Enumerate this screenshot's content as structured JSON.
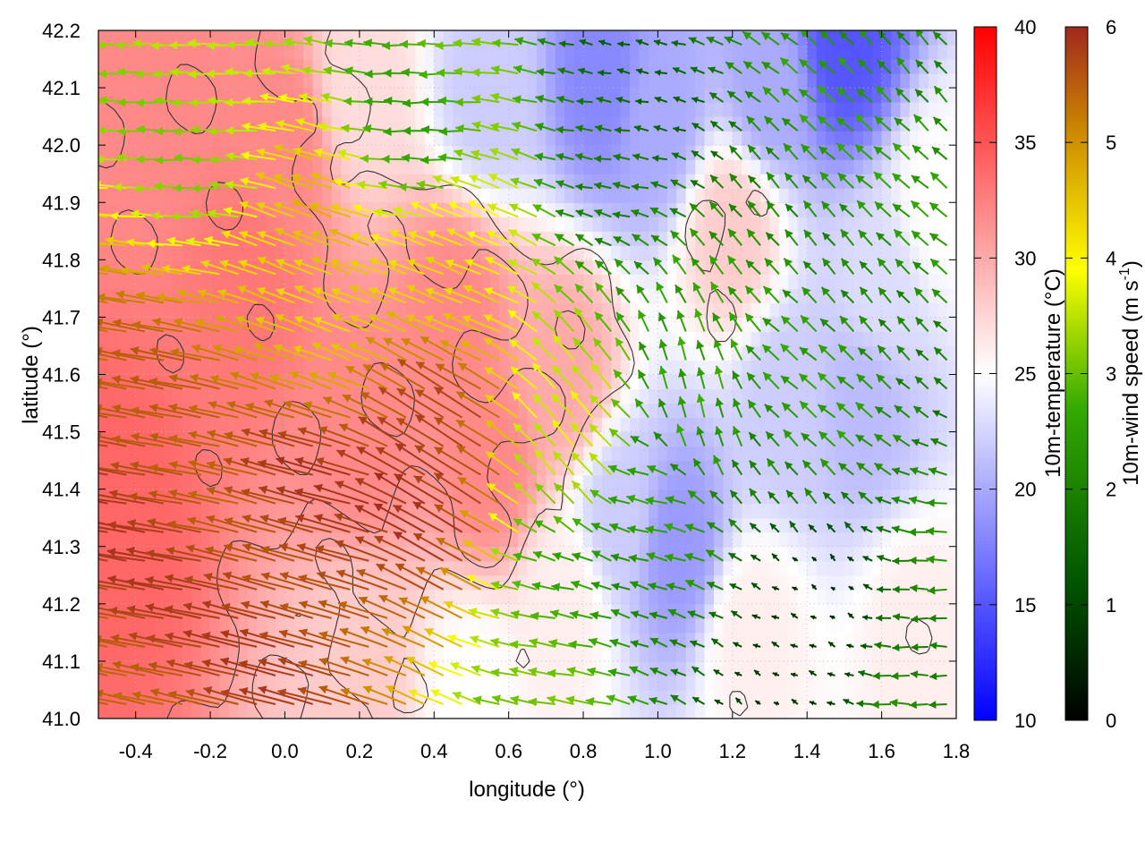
{
  "chart_data": {
    "type": "heatmap",
    "subtype": "map field with wind vectors and contour lines",
    "title": "",
    "xlabel": "longitude (°)",
    "ylabel": "latitude (°)",
    "xlim": [
      -0.5,
      1.8
    ],
    "ylim": [
      41.0,
      42.2
    ],
    "x_ticks": [
      -0.4,
      -0.2,
      0.0,
      0.2,
      0.4,
      0.6,
      0.8,
      1.0,
      1.2,
      1.4,
      1.6,
      1.8
    ],
    "x_tick_labels": [
      "-0.4",
      "-0.2",
      "0.0",
      "0.2",
      "0.4",
      "0.6",
      "0.8",
      "1.0",
      "1.2",
      "1.4",
      "1.6",
      "1.8"
    ],
    "y_ticks": [
      41.0,
      41.1,
      41.2,
      41.3,
      41.4,
      41.5,
      41.6,
      41.7,
      41.8,
      41.9,
      42.0,
      42.1,
      42.2
    ],
    "y_tick_labels": [
      "41.0",
      "41.1",
      "41.2",
      "41.3",
      "41.4",
      "41.5",
      "41.6",
      "41.7",
      "41.8",
      "41.9",
      "42.0",
      "42.1",
      "42.2"
    ],
    "grid": true,
    "temperature_colorbar": {
      "label": "10m-temperature (°C)",
      "range": [
        10,
        40
      ],
      "ticks": [
        10,
        15,
        20,
        25,
        30,
        35,
        40
      ],
      "tick_labels": [
        "10",
        "15",
        "20",
        "25",
        "30",
        "35",
        "40"
      ],
      "colors": [
        "#0000ff",
        "#ffffff",
        "#ff0000"
      ]
    },
    "wind_colorbar": {
      "label_main": "10m-wind speed (m s",
      "label_sup": "-1",
      "label_end": ")",
      "range": [
        0,
        6
      ],
      "ticks": [
        0,
        1,
        2,
        3,
        4,
        5,
        6
      ],
      "tick_labels": [
        "0",
        "1",
        "2",
        "3",
        "4",
        "5",
        "6"
      ],
      "colors": [
        "#000000",
        "#005500",
        "#33aa00",
        "#ffff00",
        "#cc8800",
        "#a0281e"
      ]
    },
    "temperature_features": [
      {
        "lon": -0.45,
        "lat": 41.35,
        "temp": 34
      },
      {
        "lon": -0.35,
        "lat": 42.05,
        "temp": 32
      },
      {
        "lon": -0.1,
        "lat": 41.75,
        "temp": 33
      },
      {
        "lon": 0.0,
        "lat": 42.0,
        "temp": 32
      },
      {
        "lon": 0.2,
        "lat": 41.5,
        "temp": 32
      },
      {
        "lon": 0.45,
        "lat": 41.7,
        "temp": 32
      },
      {
        "lon": 0.55,
        "lat": 41.45,
        "temp": 32
      },
      {
        "lon": 0.75,
        "lat": 41.6,
        "temp": 30
      },
      {
        "lon": 0.5,
        "lat": 41.05,
        "temp": 25
      },
      {
        "lon": 0.75,
        "lat": 41.2,
        "temp": 26
      },
      {
        "lon": 0.9,
        "lat": 41.35,
        "temp": 22
      },
      {
        "lon": 1.05,
        "lat": 41.3,
        "temp": 19
      },
      {
        "lon": 1.25,
        "lat": 41.15,
        "temp": 26
      },
      {
        "lon": 1.35,
        "lat": 41.55,
        "temp": 22
      },
      {
        "lon": 1.55,
        "lat": 41.55,
        "temp": 21
      },
      {
        "lon": 1.6,
        "lat": 41.75,
        "temp": 23
      },
      {
        "lon": 1.5,
        "lat": 42.18,
        "temp": 15
      },
      {
        "lon": 1.3,
        "lat": 42.1,
        "temp": 20
      },
      {
        "lon": 0.85,
        "lat": 42.12,
        "temp": 18
      },
      {
        "lon": 1.0,
        "lat": 42.05,
        "temp": 20
      },
      {
        "lon": 0.55,
        "lat": 42.1,
        "temp": 22
      },
      {
        "lon": 1.7,
        "lat": 41.15,
        "temp": 26
      },
      {
        "lon": 1.2,
        "lat": 41.85,
        "temp": 28
      },
      {
        "lon": 0.2,
        "lat": 41.1,
        "temp": 28
      },
      {
        "lon": 1.75,
        "lat": 41.9,
        "temp": 25
      },
      {
        "lon": 0.2,
        "lat": 42.1,
        "temp": 27
      }
    ],
    "wind_regions": [
      {
        "lon": -0.35,
        "lat": 41.4,
        "u": -5.5,
        "v": 1.0
      },
      {
        "lon": 0.1,
        "lat": 41.3,
        "u": -5.5,
        "v": 1.5
      },
      {
        "lon": 0.45,
        "lat": 41.45,
        "u": -5.0,
        "v": 3.0
      },
      {
        "lon": 0.1,
        "lat": 41.75,
        "u": -4.0,
        "v": 1.5
      },
      {
        "lon": 0.5,
        "lat": 41.8,
        "u": -3.5,
        "v": 1.5
      },
      {
        "lon": -0.2,
        "lat": 42.1,
        "u": -3.0,
        "v": 0.0
      },
      {
        "lon": 0.4,
        "lat": 42.05,
        "u": -2.5,
        "v": 0.0
      },
      {
        "lon": 0.9,
        "lat": 42.05,
        "u": -1.5,
        "v": 0.3
      },
      {
        "lon": 0.8,
        "lat": 41.5,
        "u": -2.0,
        "v": 2.5
      },
      {
        "lon": 1.1,
        "lat": 41.55,
        "u": -0.8,
        "v": 2.2
      },
      {
        "lon": 1.4,
        "lat": 41.5,
        "u": -1.5,
        "v": 1.5
      },
      {
        "lon": 1.5,
        "lat": 41.85,
        "u": -1.5,
        "v": 1.5
      },
      {
        "lon": 1.4,
        "lat": 41.15,
        "u": -0.5,
        "v": 0.3
      },
      {
        "lon": 1.75,
        "lat": 41.1,
        "u": -2.0,
        "v": 0.0
      },
      {
        "lon": 0.75,
        "lat": 41.15,
        "u": -2.5,
        "v": 0.5
      },
      {
        "lon": 1.0,
        "lat": 41.35,
        "u": -2.0,
        "v": 0.5
      }
    ],
    "wind_vector_spacing_deg": [
      0.05,
      0.05
    ],
    "contour_level_temps": [
      28,
      31
    ],
    "contour_color": "#333333"
  }
}
